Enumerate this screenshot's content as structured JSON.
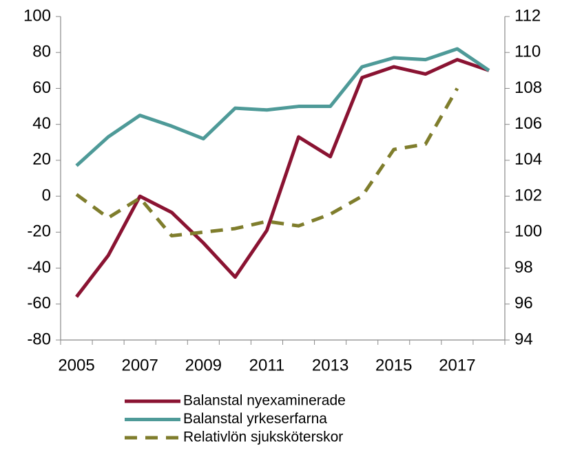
{
  "chart_data": {
    "type": "line",
    "categories": [
      "2005",
      null,
      "2007",
      null,
      "2009",
      null,
      "2011",
      null,
      "2013",
      null,
      "2015",
      null,
      "2017",
      null
    ],
    "series": [
      {
        "name": "Balanstal nyexaminerade",
        "color": "#8a1332",
        "dash": false,
        "axis": "y",
        "values": [
          -56,
          -33,
          0,
          -9,
          -26,
          -45,
          -19,
          33,
          22,
          66,
          72,
          68,
          76,
          70
        ]
      },
      {
        "name": "Balanstal yrkeserfarna",
        "color": "#4e9a98",
        "dash": false,
        "axis": "y",
        "values": [
          17,
          33,
          45,
          39,
          32,
          49,
          48,
          50,
          50,
          72,
          77,
          76,
          82,
          70
        ]
      },
      {
        "name": "Relativlön sjuksköterskor",
        "color": "#7f7d2c",
        "dash": true,
        "axis": "y2",
        "values": [
          102.1,
          100.8,
          101.9,
          99.8,
          100.0,
          100.2,
          100.6,
          100.35,
          101.0,
          102.0,
          104.6,
          104.9,
          108.0,
          null
        ]
      }
    ],
    "ylim": [
      -80,
      100
    ],
    "yticks": [
      -80,
      -60,
      -40,
      -20,
      0,
      20,
      40,
      60,
      80,
      100
    ],
    "y2lim": [
      94,
      112
    ],
    "y2ticks": [
      94,
      96,
      98,
      100,
      102,
      104,
      106,
      108,
      110,
      112
    ],
    "grid": false,
    "legend": "bottom"
  }
}
